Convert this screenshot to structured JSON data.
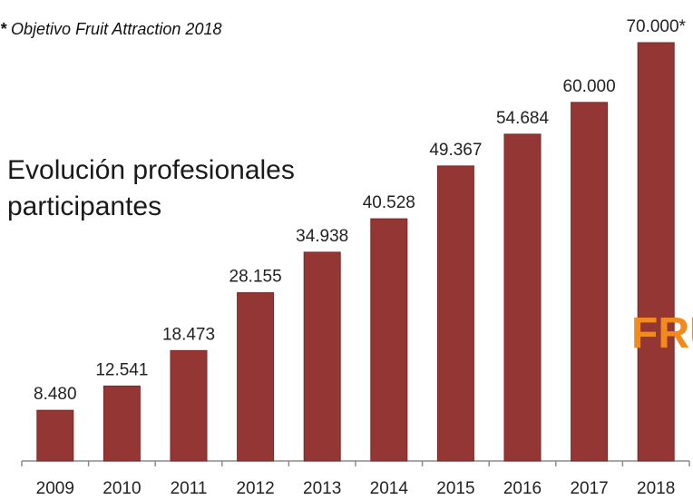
{
  "note": {
    "star": "*",
    "text": "Objetivo Fruit Attraction 2018"
  },
  "title_line1": "Evolución profesionales",
  "title_line2": "participantes",
  "brand_fragment": "FRU",
  "colors": {
    "bar": "#943634",
    "bar_stroke": "#7a2826",
    "axis": "#8c8c8c",
    "text": "#222222",
    "brand": "#f28a1e"
  },
  "chart_data": {
    "type": "bar",
    "categories": [
      "2009",
      "2010",
      "2011",
      "2012",
      "2013",
      "2014",
      "2015",
      "2016",
      "2017",
      "2018"
    ],
    "values": [
      8480,
      12541,
      18473,
      28155,
      34938,
      40528,
      49367,
      54684,
      60000,
      70000
    ],
    "data_labels": [
      "8.480",
      "12.541",
      "18.473",
      "28.155",
      "34.938",
      "40.528",
      "49.367",
      "54.684",
      "60.000",
      "70.000*"
    ],
    "ylim": [
      0,
      70000
    ],
    "grid": false,
    "legend": "none"
  }
}
